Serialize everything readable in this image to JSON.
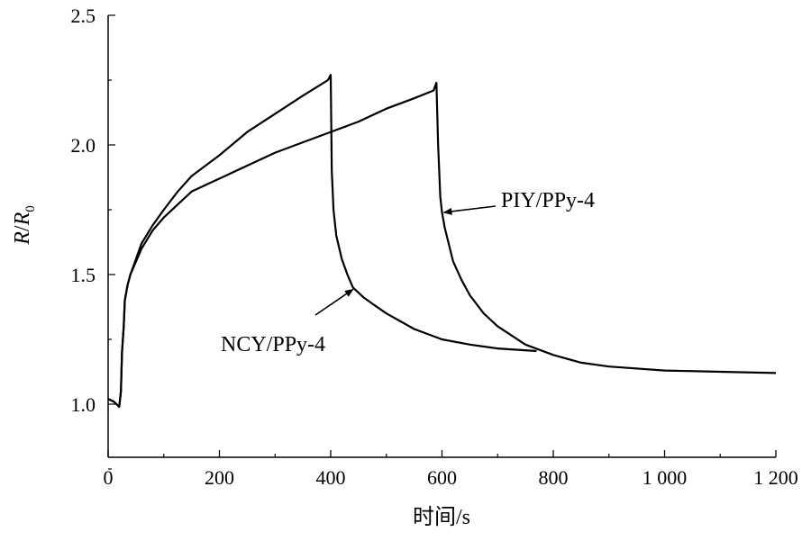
{
  "chart_data": {
    "type": "line",
    "title": "",
    "xlabel": "时间/s",
    "ylabel_italic": "R",
    "ylabel_sep": "/",
    "ylabel_sub_base": "R",
    "ylabel_sub": "0",
    "xlim": [
      0,
      1200
    ],
    "ylim": [
      0.75,
      2.5
    ],
    "xticks": [
      0,
      200,
      400,
      600,
      800,
      1000,
      1200
    ],
    "xtick_labels": [
      "0",
      "200",
      "400",
      "600",
      "800",
      "1 000",
      "1 200"
    ],
    "yticks": [
      1.0,
      1.5,
      2.0,
      2.5
    ],
    "ytick_labels": [
      "1.0",
      "1.5",
      "2.0",
      "2.5"
    ],
    "grid": false,
    "series": [
      {
        "name": "NCY/PPy-4",
        "x": [
          0,
          10,
          15,
          20,
          23,
          25,
          28,
          30,
          35,
          40,
          50,
          60,
          80,
          100,
          125,
          150,
          175,
          200,
          250,
          300,
          350,
          380,
          395,
          400,
          402,
          405,
          410,
          420,
          430,
          440,
          450,
          460,
          480,
          500,
          550,
          600,
          650,
          700,
          770
        ],
        "y": [
          1.02,
          1.01,
          1.0,
          0.99,
          1.05,
          1.2,
          1.3,
          1.4,
          1.46,
          1.5,
          1.56,
          1.62,
          1.69,
          1.75,
          1.82,
          1.88,
          1.92,
          1.96,
          2.05,
          2.12,
          2.19,
          2.23,
          2.25,
          2.27,
          1.9,
          1.75,
          1.65,
          1.56,
          1.5,
          1.45,
          1.43,
          1.41,
          1.38,
          1.35,
          1.29,
          1.25,
          1.23,
          1.215,
          1.205
        ]
      },
      {
        "name": "PIY/PPy-4",
        "x": [
          0,
          10,
          15,
          20,
          23,
          25,
          28,
          30,
          35,
          40,
          50,
          60,
          80,
          100,
          150,
          200,
          250,
          300,
          350,
          400,
          450,
          500,
          550,
          585,
          590,
          593,
          597,
          600,
          605,
          620,
          635,
          650,
          675,
          700,
          750,
          800,
          850,
          900,
          1000,
          1100,
          1200
        ],
        "y": [
          1.02,
          1.01,
          1.0,
          0.99,
          1.05,
          1.2,
          1.3,
          1.4,
          1.46,
          1.5,
          1.55,
          1.6,
          1.67,
          1.72,
          1.82,
          1.87,
          1.92,
          1.97,
          2.01,
          2.05,
          2.09,
          2.14,
          2.18,
          2.21,
          2.24,
          2.0,
          1.8,
          1.74,
          1.68,
          1.55,
          1.48,
          1.42,
          1.35,
          1.3,
          1.23,
          1.19,
          1.16,
          1.145,
          1.13,
          1.125,
          1.12
        ]
      }
    ],
    "annotations": [
      {
        "text": "NCY/PPy-4",
        "series": "NCY/PPy-4",
        "points_to": [
          437,
          1.45
        ]
      },
      {
        "text": "PIY/PPy-4",
        "series": "PIY/PPy-4",
        "points_to": [
          600,
          1.74
        ]
      }
    ]
  }
}
